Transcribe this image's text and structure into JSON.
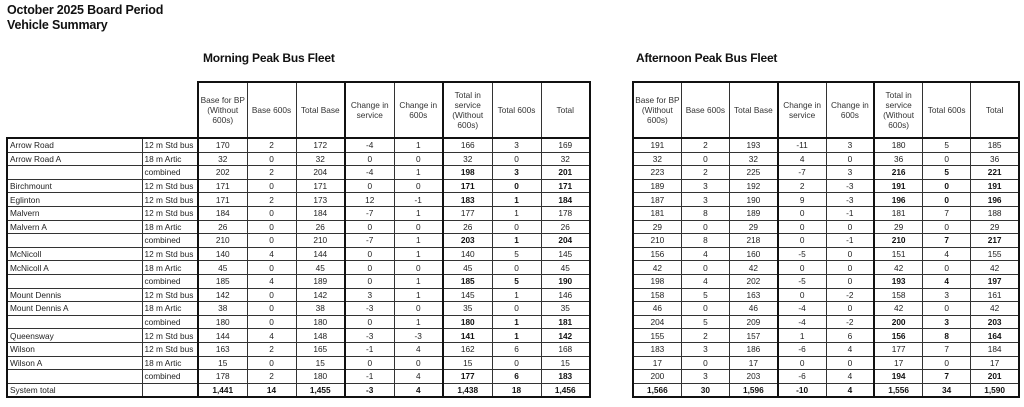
{
  "title": [
    "October 2025 Board Period",
    "Vehicle Summary"
  ],
  "morning_title": "Morning Peak Bus Fleet",
  "afternoon_title": "Afternoon Peak Bus Fleet",
  "columns": [
    "Base for BP (Without 600s)",
    "Base 600s",
    "Total Base",
    "Change in service",
    "Change in 600s",
    "Total in service (Without 600s)",
    "Total 600s",
    "Total"
  ],
  "rows": [
    {
      "name": "Arrow Road",
      "type": "12 m Std bus",
      "bold": false,
      "am": [
        "170",
        "2",
        "172",
        "-4",
        "1",
        "166",
        "3",
        "169"
      ],
      "pm": [
        "191",
        "2",
        "193",
        "-11",
        "3",
        "180",
        "5",
        "185"
      ]
    },
    {
      "name": "Arrow Road A",
      "type": "18 m Artic",
      "bold": false,
      "am": [
        "32",
        "0",
        "32",
        "0",
        "0",
        "32",
        "0",
        "32"
      ],
      "pm": [
        "32",
        "0",
        "32",
        "4",
        "0",
        "36",
        "0",
        "36"
      ]
    },
    {
      "name": "",
      "type": "combined",
      "bold": true,
      "am": [
        "202",
        "2",
        "204",
        "-4",
        "1",
        "198",
        "3",
        "201"
      ],
      "pm": [
        "223",
        "2",
        "225",
        "-7",
        "3",
        "216",
        "5",
        "221"
      ]
    },
    {
      "name": "Birchmount",
      "type": "12 m Std bus",
      "bold": true,
      "am": [
        "171",
        "0",
        "171",
        "0",
        "0",
        "171",
        "0",
        "171"
      ],
      "pm": [
        "189",
        "3",
        "192",
        "2",
        "-3",
        "191",
        "0",
        "191"
      ]
    },
    {
      "name": "Eglinton",
      "type": "12 m Std bus",
      "bold": true,
      "am": [
        "171",
        "2",
        "173",
        "12",
        "-1",
        "183",
        "1",
        "184"
      ],
      "pm": [
        "187",
        "3",
        "190",
        "9",
        "-3",
        "196",
        "0",
        "196"
      ]
    },
    {
      "name": "Malvern",
      "type": "12 m Std bus",
      "bold": false,
      "am": [
        "184",
        "0",
        "184",
        "-7",
        "1",
        "177",
        "1",
        "178"
      ],
      "pm": [
        "181",
        "8",
        "189",
        "0",
        "-1",
        "181",
        "7",
        "188"
      ]
    },
    {
      "name": "Malvern A",
      "type": "18 m Artic",
      "bold": false,
      "am": [
        "26",
        "0",
        "26",
        "0",
        "0",
        "26",
        "0",
        "26"
      ],
      "pm": [
        "29",
        "0",
        "29",
        "0",
        "0",
        "29",
        "0",
        "29"
      ]
    },
    {
      "name": "",
      "type": "combined",
      "bold": true,
      "am": [
        "210",
        "0",
        "210",
        "-7",
        "1",
        "203",
        "1",
        "204"
      ],
      "pm": [
        "210",
        "8",
        "218",
        "0",
        "-1",
        "210",
        "7",
        "217"
      ]
    },
    {
      "name": "McNicoll",
      "type": "12 m Std bus",
      "bold": false,
      "am": [
        "140",
        "4",
        "144",
        "0",
        "1",
        "140",
        "5",
        "145"
      ],
      "pm": [
        "156",
        "4",
        "160",
        "-5",
        "0",
        "151",
        "4",
        "155"
      ]
    },
    {
      "name": "McNicoll A",
      "type": "18 m Artic",
      "bold": false,
      "am": [
        "45",
        "0",
        "45",
        "0",
        "0",
        "45",
        "0",
        "45"
      ],
      "pm": [
        "42",
        "0",
        "42",
        "0",
        "0",
        "42",
        "0",
        "42"
      ]
    },
    {
      "name": "",
      "type": "combined",
      "bold": true,
      "am": [
        "185",
        "4",
        "189",
        "0",
        "1",
        "185",
        "5",
        "190"
      ],
      "pm": [
        "198",
        "4",
        "202",
        "-5",
        "0",
        "193",
        "4",
        "197"
      ]
    },
    {
      "name": "Mount Dennis",
      "type": "12 m Std bus",
      "bold": false,
      "am": [
        "142",
        "0",
        "142",
        "3",
        "1",
        "145",
        "1",
        "146"
      ],
      "pm": [
        "158",
        "5",
        "163",
        "0",
        "-2",
        "158",
        "3",
        "161"
      ]
    },
    {
      "name": "Mount Dennis A",
      "type": "18 m Artic",
      "bold": false,
      "am": [
        "38",
        "0",
        "38",
        "-3",
        "0",
        "35",
        "0",
        "35"
      ],
      "pm": [
        "46",
        "0",
        "46",
        "-4",
        "0",
        "42",
        "0",
        "42"
      ]
    },
    {
      "name": "",
      "type": "combined",
      "bold": true,
      "am": [
        "180",
        "0",
        "180",
        "0",
        "1",
        "180",
        "1",
        "181"
      ],
      "pm": [
        "204",
        "5",
        "209",
        "-4",
        "-2",
        "200",
        "3",
        "203"
      ]
    },
    {
      "name": "Queensway",
      "type": "12 m Std bus",
      "bold": true,
      "am": [
        "144",
        "4",
        "148",
        "-3",
        "-3",
        "141",
        "1",
        "142"
      ],
      "pm": [
        "155",
        "2",
        "157",
        "1",
        "6",
        "156",
        "8",
        "164"
      ]
    },
    {
      "name": "Wilson",
      "type": "12 m Std bus",
      "bold": false,
      "am": [
        "163",
        "2",
        "165",
        "-1",
        "4",
        "162",
        "6",
        "168"
      ],
      "pm": [
        "183",
        "3",
        "186",
        "-6",
        "4",
        "177",
        "7",
        "184"
      ]
    },
    {
      "name": "Wilson A",
      "type": "18 m Artic",
      "bold": false,
      "am": [
        "15",
        "0",
        "15",
        "0",
        "0",
        "15",
        "0",
        "15"
      ],
      "pm": [
        "17",
        "0",
        "17",
        "0",
        "0",
        "17",
        "0",
        "17"
      ]
    },
    {
      "name": "",
      "type": "combined",
      "bold": true,
      "am": [
        "178",
        "2",
        "180",
        "-1",
        "4",
        "177",
        "6",
        "183"
      ],
      "pm": [
        "200",
        "3",
        "203",
        "-6",
        "4",
        "194",
        "7",
        "201"
      ]
    },
    {
      "name": "System total",
      "type": "",
      "bold": true,
      "total": true,
      "am": [
        "1,441",
        "14",
        "1,455",
        "-3",
        "4",
        "1,438",
        "18",
        "1,456"
      ],
      "pm": [
        "1,566",
        "30",
        "1,596",
        "-10",
        "4",
        "1,556",
        "34",
        "1,590"
      ]
    }
  ]
}
